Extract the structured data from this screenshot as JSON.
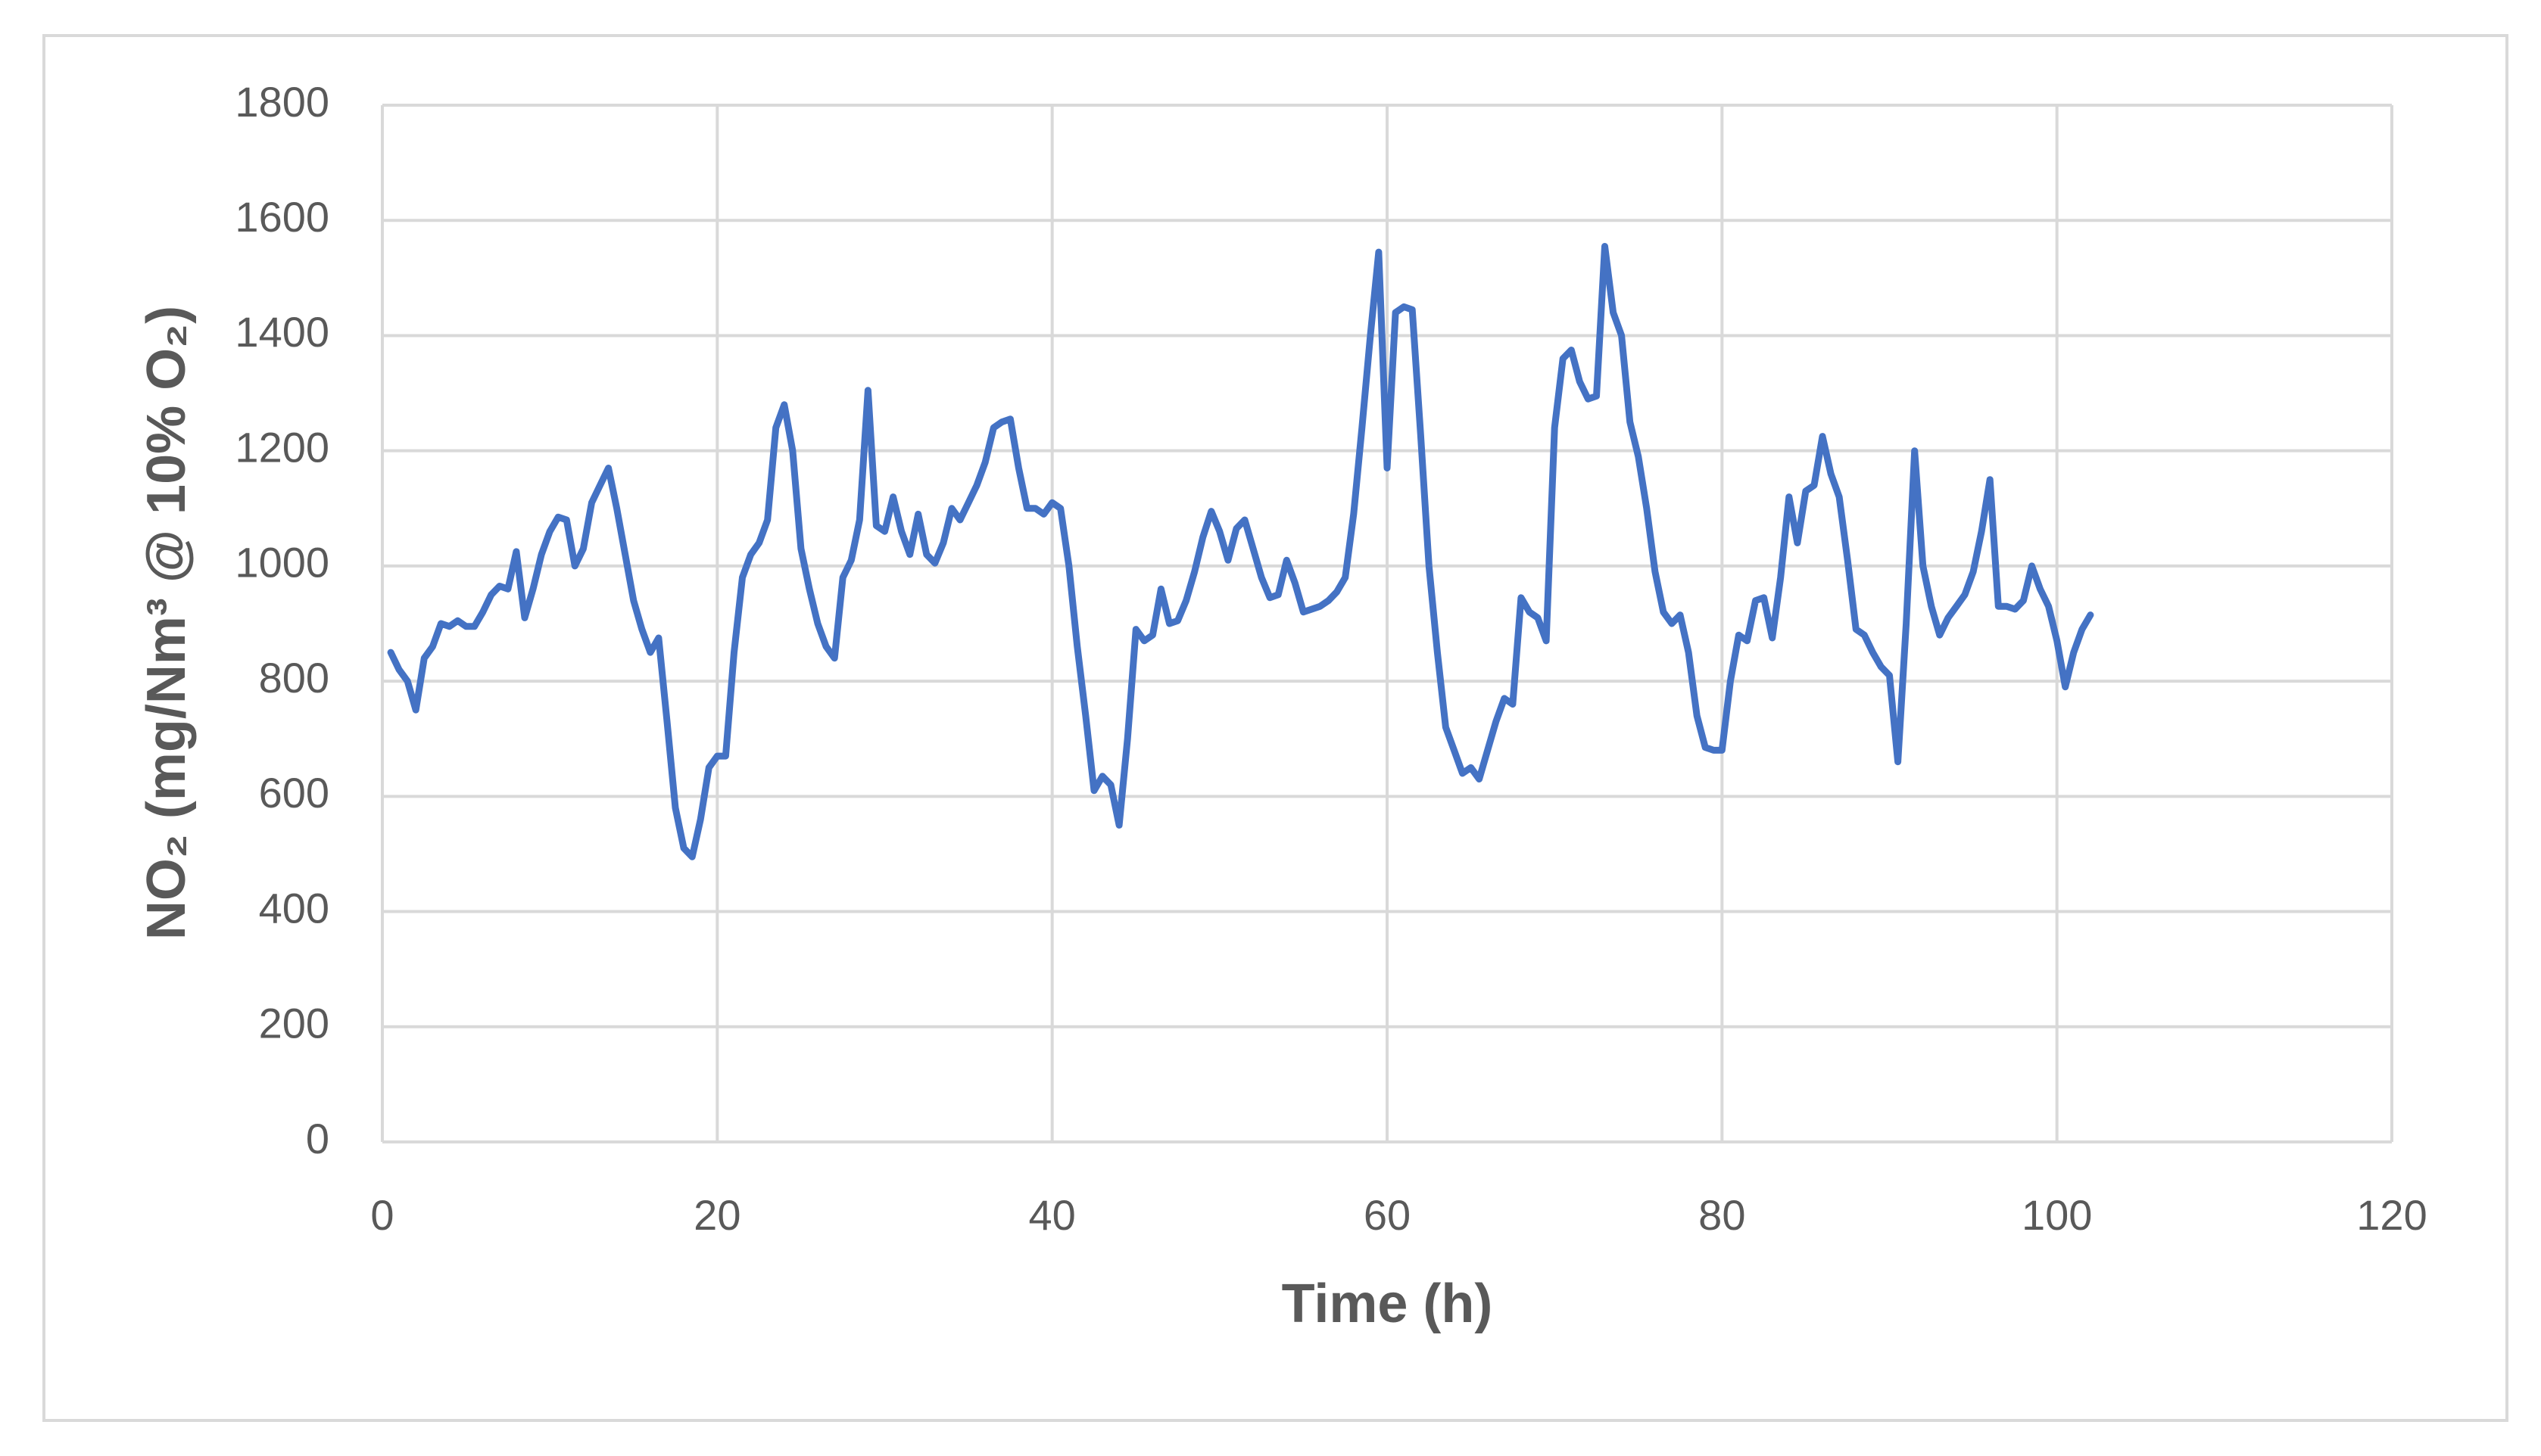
{
  "chart_data": {
    "type": "line",
    "xlabel": "Time (h)",
    "ylabel": "NO₂ (mg/Nm³ @ 10% O₂)",
    "x": [
      0.5,
      1,
      1.5,
      2,
      2.5,
      3,
      3.5,
      4,
      4.5,
      5,
      5.5,
      6,
      6.5,
      7,
      7.5,
      8,
      8.5,
      9,
      9.5,
      10,
      10.5,
      11,
      11.5,
      12,
      12.5,
      13,
      13.5,
      14,
      14.5,
      15,
      15.5,
      16,
      16.5,
      17,
      17.5,
      18,
      18.5,
      19,
      19.5,
      20,
      20.5,
      21,
      21.5,
      22,
      22.5,
      23,
      23.5,
      24,
      24.5,
      25,
      25.5,
      26,
      26.5,
      27,
      27.5,
      28,
      28.5,
      29,
      29.5,
      30,
      30.5,
      31,
      31.5,
      32,
      32.5,
      33,
      33.5,
      34,
      34.5,
      35,
      35.5,
      36,
      36.5,
      37,
      37.5,
      38,
      38.5,
      39,
      39.5,
      40,
      40.5,
      41,
      41.5,
      42,
      42.5,
      43,
      43.5,
      44,
      44.5,
      45,
      45.5,
      46,
      46.5,
      47,
      47.5,
      48,
      48.5,
      49,
      49.5,
      50,
      50.5,
      51,
      51.5,
      52,
      52.5,
      53,
      53.5,
      54,
      54.5,
      55,
      55.5,
      56,
      56.5,
      57,
      57.5,
      58,
      58.5,
      59,
      59.5,
      60,
      60.5,
      61,
      61.5,
      62,
      62.5,
      63,
      63.5,
      64,
      64.5,
      65,
      65.5,
      66,
      66.5,
      67,
      67.5,
      68,
      68.5,
      69,
      69.5,
      70,
      70.5,
      71,
      71.5,
      72,
      72.5,
      73,
      73.5,
      74,
      74.5,
      75,
      75.5,
      76,
      76.5,
      77,
      77.5,
      78,
      78.5,
      79,
      79.5,
      80,
      80.5,
      81,
      81.5,
      82,
      82.5,
      83,
      83.5,
      84,
      84.5,
      85,
      85.5,
      86,
      86.5,
      87,
      87.5,
      88,
      88.5,
      89,
      89.5,
      90,
      90.5,
      91,
      91.5,
      92,
      92.5,
      93,
      93.5,
      94,
      94.5,
      95,
      95.5,
      96,
      96.5,
      97,
      97.5,
      98,
      98.5,
      99,
      99.5,
      100,
      100.5,
      101,
      101.5,
      102
    ],
    "series": [
      {
        "name": "NO2",
        "color": "#4472c4",
        "values": [
          850,
          820,
          800,
          750,
          840,
          860,
          900,
          895,
          905,
          895,
          895,
          920,
          950,
          965,
          960,
          1025,
          910,
          960,
          1020,
          1060,
          1085,
          1080,
          1000,
          1030,
          1110,
          1140,
          1170,
          1100,
          1020,
          940,
          890,
          850,
          875,
          730,
          580,
          510,
          495,
          560,
          650,
          670,
          670,
          850,
          980,
          1020,
          1040,
          1080,
          1240,
          1280,
          1200,
          1030,
          960,
          900,
          860,
          840,
          980,
          1010,
          1080,
          1305,
          1070,
          1060,
          1120,
          1060,
          1020,
          1090,
          1020,
          1005,
          1040,
          1100,
          1080,
          1110,
          1140,
          1180,
          1240,
          1250,
          1255,
          1170,
          1100,
          1100,
          1090,
          1110,
          1100,
          1000,
          860,
          740,
          610,
          635,
          620,
          550,
          700,
          890,
          870,
          880,
          960,
          900,
          905,
          940,
          990,
          1050,
          1095,
          1060,
          1010,
          1065,
          1080,
          1030,
          980,
          945,
          950,
          1010,
          970,
          920,
          925,
          930,
          940,
          955,
          980,
          1090,
          1240,
          1400,
          1545,
          1170,
          1440,
          1450,
          1445,
          1230,
          1000,
          850,
          720,
          680,
          640,
          650,
          630,
          680,
          730,
          770,
          760,
          945,
          920,
          910,
          870,
          1240,
          1360,
          1375,
          1320,
          1290,
          1295,
          1555,
          1440,
          1400,
          1250,
          1190,
          1100,
          990,
          920,
          900,
          915,
          850,
          740,
          685,
          680,
          680,
          800,
          880,
          870,
          940,
          945,
          875,
          980,
          1120,
          1040,
          1130,
          1140,
          1225,
          1160,
          1120,
          1010,
          890,
          880,
          850,
          825,
          810,
          660,
          900,
          1200,
          1000,
          930,
          880,
          910,
          930,
          950,
          990,
          1060,
          1150,
          930,
          930,
          925,
          940,
          1000,
          960,
          930,
          870,
          790,
          850,
          890,
          915
        ]
      }
    ],
    "xlim": [
      0,
      120
    ],
    "xticks": [
      0,
      20,
      40,
      60,
      80,
      100,
      120
    ],
    "ylim": [
      0,
      1800
    ],
    "yticks": [
      0,
      200,
      400,
      600,
      800,
      1000,
      1200,
      1400,
      1600,
      1800
    ],
    "grid": true
  }
}
